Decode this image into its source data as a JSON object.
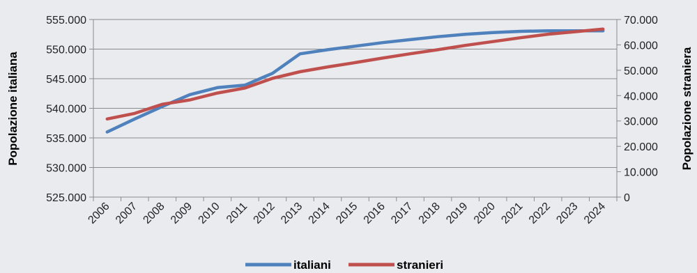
{
  "chart_data": {
    "type": "line",
    "categories": [
      "2006",
      "2007",
      "2008",
      "2009",
      "2010",
      "2011",
      "2012",
      "2013",
      "2014",
      "2015",
      "2016",
      "2017",
      "2018",
      "2019",
      "2020",
      "2021",
      "2022",
      "2023",
      "2024"
    ],
    "y_left": {
      "label": "Popolazione italiana",
      "range": [
        525000,
        555000
      ],
      "ticks": [
        "525.000",
        "530.000",
        "535.000",
        "540.000",
        "545.000",
        "550.000",
        "555.000"
      ]
    },
    "y_right": {
      "label": "Popolazione straniera",
      "range": [
        0,
        70000
      ],
      "ticks": [
        "0",
        "10.000",
        "20.000",
        "30.000",
        "40.000",
        "50.000",
        "60.000",
        "70.000"
      ]
    },
    "series": [
      {
        "name": "italiani",
        "axis": "left",
        "color": "#4f81bd",
        "values": [
          536000,
          538200,
          540300,
          542300,
          543500,
          543900,
          545900,
          549200,
          549900,
          550500,
          551100,
          551600,
          552100,
          552500,
          552800,
          553000,
          553100,
          553100,
          553100
        ]
      },
      {
        "name": "stranieri",
        "axis": "right",
        "color": "#c0504d",
        "values": [
          30800,
          33000,
          36600,
          38300,
          41000,
          43000,
          46800,
          49400,
          51300,
          53000,
          54800,
          56500,
          58100,
          59800,
          61300,
          62800,
          64200,
          65200,
          66200
        ]
      }
    ],
    "legend_position": "bottom",
    "grid": "horizontal"
  }
}
